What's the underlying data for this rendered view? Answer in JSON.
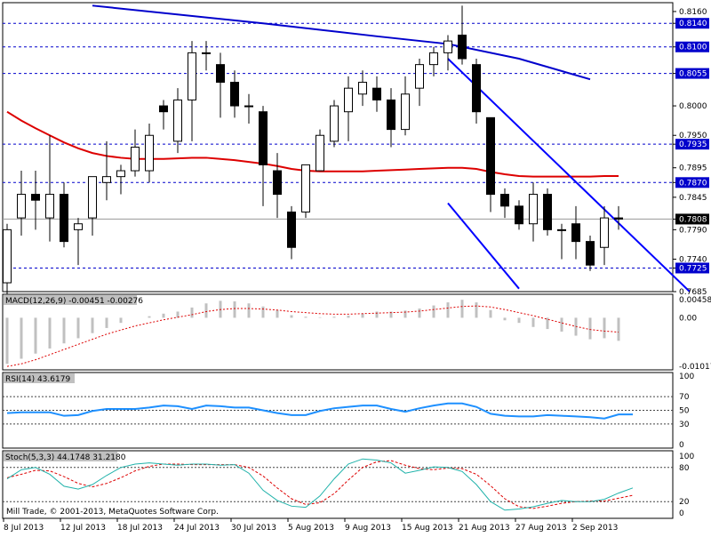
{
  "window": {
    "copyright": "Mill Trade, © 2001-2013, MetaQuotes Software Corp."
  },
  "colors": {
    "price_line": "#0000ff",
    "ma_fast": "#dd0000",
    "ma_slow": "#0000cc",
    "highlight_bg": "#0000cc",
    "macd_hist": "#c0c0c0",
    "macd_signal": "#dd0000",
    "rsi": "#1e90ff",
    "stoch_main": "#20b2aa",
    "stoch_signal": "#dd0000",
    "grid": "#000000"
  },
  "chart_data": [
    {
      "type": "candlestick",
      "price_axis_ticks": [
        "0.8160",
        "0.8140",
        "0.8100",
        "0.8055",
        "0.8000",
        "0.7950",
        "0.7935",
        "0.7895",
        "0.7870",
        "0.7845",
        "0.7808",
        "0.7790",
        "0.7740",
        "0.7725",
        "0.7685"
      ],
      "highlighted_levels": [
        "0.8140",
        "0.8100",
        "0.8055",
        "0.7935",
        "0.7870",
        "0.7808",
        "0.7725"
      ],
      "ylim": [
        0.7685,
        0.8175
      ],
      "dates": [
        "8 Jul 2013",
        "12 Jul 2013",
        "18 Jul 2013",
        "24 Jul 2013",
        "30 Jul 2013",
        "5 Aug 2013",
        "9 Aug 2013",
        "15 Aug 2013",
        "21 Aug 2013",
        "27 Aug 2013",
        "2 Sep 2013"
      ],
      "candles": [
        {
          "o": 0.77,
          "h": 0.78,
          "l": 0.768,
          "c": 0.779
        },
        {
          "o": 0.781,
          "h": 0.789,
          "l": 0.778,
          "c": 0.785
        },
        {
          "o": 0.785,
          "h": 0.789,
          "l": 0.779,
          "c": 0.784
        },
        {
          "o": 0.781,
          "h": 0.795,
          "l": 0.777,
          "c": 0.785
        },
        {
          "o": 0.785,
          "h": 0.787,
          "l": 0.776,
          "c": 0.777
        },
        {
          "o": 0.779,
          "h": 0.781,
          "l": 0.773,
          "c": 0.78
        },
        {
          "o": 0.781,
          "h": 0.788,
          "l": 0.778,
          "c": 0.788
        },
        {
          "o": 0.787,
          "h": 0.794,
          "l": 0.784,
          "c": 0.788
        },
        {
          "o": 0.788,
          "h": 0.79,
          "l": 0.785,
          "c": 0.789
        },
        {
          "o": 0.789,
          "h": 0.796,
          "l": 0.788,
          "c": 0.793
        },
        {
          "o": 0.789,
          "h": 0.797,
          "l": 0.787,
          "c": 0.795
        },
        {
          "o": 0.8,
          "h": 0.801,
          "l": 0.796,
          "c": 0.799
        },
        {
          "o": 0.794,
          "h": 0.803,
          "l": 0.792,
          "c": 0.801
        },
        {
          "o": 0.801,
          "h": 0.811,
          "l": 0.794,
          "c": 0.809
        },
        {
          "o": 0.809,
          "h": 0.811,
          "l": 0.806,
          "c": 0.809
        },
        {
          "o": 0.807,
          "h": 0.809,
          "l": 0.798,
          "c": 0.804
        },
        {
          "o": 0.804,
          "h": 0.806,
          "l": 0.798,
          "c": 0.8
        },
        {
          "o": 0.8,
          "h": 0.802,
          "l": 0.797,
          "c": 0.8
        },
        {
          "o": 0.799,
          "h": 0.8,
          "l": 0.783,
          "c": 0.79
        },
        {
          "o": 0.789,
          "h": 0.792,
          "l": 0.781,
          "c": 0.785
        },
        {
          "o": 0.782,
          "h": 0.783,
          "l": 0.774,
          "c": 0.776
        },
        {
          "o": 0.782,
          "h": 0.79,
          "l": 0.781,
          "c": 0.79
        },
        {
          "o": 0.789,
          "h": 0.796,
          "l": 0.789,
          "c": 0.795
        },
        {
          "o": 0.794,
          "h": 0.801,
          "l": 0.793,
          "c": 0.8
        },
        {
          "o": 0.799,
          "h": 0.805,
          "l": 0.794,
          "c": 0.803
        },
        {
          "o": 0.802,
          "h": 0.806,
          "l": 0.8,
          "c": 0.804
        },
        {
          "o": 0.803,
          "h": 0.805,
          "l": 0.799,
          "c": 0.801
        },
        {
          "o": 0.801,
          "h": 0.803,
          "l": 0.793,
          "c": 0.796
        },
        {
          "o": 0.796,
          "h": 0.805,
          "l": 0.795,
          "c": 0.802
        },
        {
          "o": 0.803,
          "h": 0.808,
          "l": 0.8,
          "c": 0.807
        },
        {
          "o": 0.807,
          "h": 0.81,
          "l": 0.805,
          "c": 0.809
        },
        {
          "o": 0.809,
          "h": 0.812,
          "l": 0.806,
          "c": 0.811
        },
        {
          "o": 0.812,
          "h": 0.817,
          "l": 0.807,
          "c": 0.808
        },
        {
          "o": 0.807,
          "h": 0.808,
          "l": 0.797,
          "c": 0.799
        },
        {
          "o": 0.798,
          "h": 0.798,
          "l": 0.782,
          "c": 0.785
        },
        {
          "o": 0.785,
          "h": 0.786,
          "l": 0.781,
          "c": 0.783
        },
        {
          "o": 0.783,
          "h": 0.784,
          "l": 0.779,
          "c": 0.78
        },
        {
          "o": 0.78,
          "h": 0.787,
          "l": 0.777,
          "c": 0.785
        },
        {
          "o": 0.785,
          "h": 0.786,
          "l": 0.778,
          "c": 0.779
        },
        {
          "o": 0.779,
          "h": 0.78,
          "l": 0.774,
          "c": 0.779
        },
        {
          "o": 0.78,
          "h": 0.783,
          "l": 0.774,
          "c": 0.777
        },
        {
          "o": 0.777,
          "h": 0.778,
          "l": 0.772,
          "c": 0.773
        },
        {
          "o": 0.776,
          "h": 0.783,
          "l": 0.773,
          "c": 0.781
        },
        {
          "o": 0.781,
          "h": 0.783,
          "l": 0.779,
          "c": 0.7808
        }
      ],
      "ma_fast": [
        0.799,
        0.7975,
        0.7962,
        0.795,
        0.7938,
        0.7928,
        0.792,
        0.7915,
        0.7912,
        0.791,
        0.791,
        0.791,
        0.7911,
        0.7912,
        0.7912,
        0.791,
        0.7908,
        0.7905,
        0.7902,
        0.7898,
        0.7893,
        0.789,
        0.7889,
        0.7889,
        0.7889,
        0.7889,
        0.789,
        0.7891,
        0.7892,
        0.7893,
        0.7894,
        0.7895,
        0.7895,
        0.7893,
        0.7888,
        0.7884,
        0.7881,
        0.788,
        0.788,
        0.788,
        0.788,
        0.788,
        0.7881,
        0.7881
      ],
      "ma_slow": [
        {
          "i": 6,
          "v": 0.817
        },
        {
          "i": 18,
          "v": 0.814
        },
        {
          "i": 26,
          "v": 0.8118
        },
        {
          "i": 31,
          "v": 0.8105
        },
        {
          "i": 36,
          "v": 0.808
        },
        {
          "i": 41,
          "v": 0.8045
        }
      ],
      "trendlines": [
        {
          "i1": 31,
          "v1": 0.808,
          "i2": 48,
          "v2": 0.7685
        },
        {
          "i1": 31,
          "v1": 0.7835,
          "i2": 36,
          "v2": 0.769
        }
      ]
    },
    {
      "type": "bar",
      "title": "MACD(12,26,9) -0.00451 -0.00276",
      "ticks": [
        "0.00458",
        "0.00",
        "-0.01017"
      ],
      "ylim": [
        -0.01017,
        0.00458
      ],
      "values": [
        -0.009,
        -0.008,
        -0.007,
        -0.006,
        -0.005,
        -0.004,
        -0.003,
        -0.002,
        -0.001,
        0.0,
        0.0003,
        0.0008,
        0.0012,
        0.002,
        0.0028,
        0.0033,
        0.0032,
        0.0028,
        0.0022,
        0.0015,
        0.0005,
        0.0002,
        0.0001,
        0.0002,
        0.0004,
        0.0008,
        0.0012,
        0.0012,
        0.0014,
        0.0018,
        0.0024,
        0.003,
        0.0035,
        0.003,
        0.0015,
        -0.0005,
        -0.001,
        -0.0018,
        -0.0022,
        -0.0027,
        -0.0035,
        -0.0042,
        -0.004,
        -0.0045
      ],
      "signal": [
        -0.0095,
        -0.009,
        -0.0082,
        -0.0072,
        -0.0062,
        -0.0052,
        -0.0042,
        -0.0032,
        -0.0024,
        -0.0016,
        -0.001,
        -0.0004,
        0.0001,
        0.0006,
        0.0012,
        0.0016,
        0.0018,
        0.0018,
        0.0017,
        0.0015,
        0.0012,
        0.001,
        0.0008,
        0.0007,
        0.0007,
        0.0008,
        0.0009,
        0.001,
        0.0011,
        0.0013,
        0.0016,
        0.0019,
        0.0022,
        0.0023,
        0.0021,
        0.0016,
        0.001,
        0.0004,
        -0.0003,
        -0.001,
        -0.0017,
        -0.0023,
        -0.0026,
        -0.0028
      ]
    },
    {
      "type": "line",
      "title": "RSI(14) 43.6179",
      "ticks": [
        "100",
        "70",
        "50",
        "30",
        "0"
      ],
      "ylim": [
        0,
        100
      ],
      "values": [
        46,
        47,
        47,
        47,
        42,
        43,
        49,
        52,
        52,
        52,
        54,
        57,
        56,
        52,
        57,
        56,
        54,
        54,
        50,
        46,
        43,
        43,
        49,
        53,
        55,
        57,
        57,
        52,
        48,
        53,
        57,
        60,
        60,
        55,
        45,
        42,
        41,
        41,
        43,
        42,
        41,
        40,
        38,
        44,
        44
      ]
    },
    {
      "type": "line",
      "title": "Stoch(5,3,3) 44.1748 31.2180",
      "ticks": [
        "100",
        "80",
        "20",
        "0"
      ],
      "ylim": [
        0,
        100
      ],
      "main": [
        60,
        76,
        80,
        68,
        47,
        42,
        50,
        66,
        80,
        86,
        88,
        86,
        84,
        86,
        86,
        84,
        85,
        70,
        40,
        22,
        12,
        10,
        30,
        60,
        86,
        95,
        93,
        88,
        70,
        75,
        81,
        80,
        73,
        50,
        20,
        5,
        7,
        11,
        17,
        22,
        20,
        20,
        24,
        35,
        44
      ],
      "signal": [
        62,
        68,
        75,
        74,
        64,
        52,
        46,
        52,
        62,
        74,
        82,
        86,
        86,
        85,
        85,
        85,
        85,
        80,
        65,
        44,
        25,
        15,
        18,
        34,
        58,
        80,
        90,
        92,
        84,
        78,
        76,
        79,
        78,
        68,
        48,
        25,
        11,
        8,
        12,
        17,
        20,
        21,
        21,
        26,
        31
      ]
    }
  ]
}
